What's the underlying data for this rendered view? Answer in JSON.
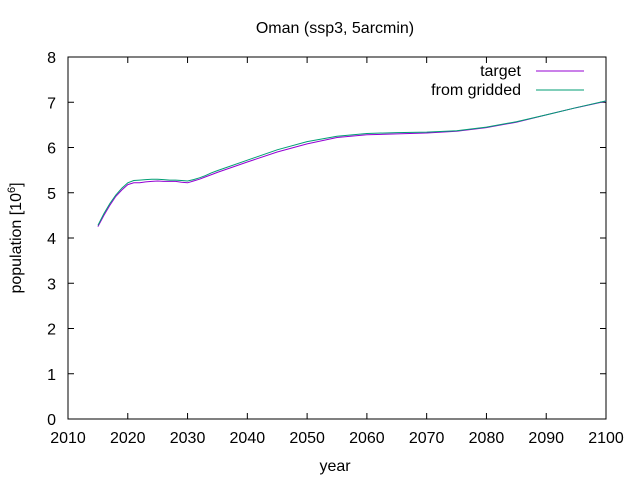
{
  "chart_data": {
    "type": "line",
    "title": "Oman (ssp3, 5arcmin)",
    "xlabel": "year",
    "ylabel_base": "population [10",
    "ylabel_exp": "6",
    "ylabel_close": "]",
    "xlim": [
      2010,
      2100
    ],
    "ylim": [
      0,
      8
    ],
    "xticks": [
      2010,
      2020,
      2030,
      2040,
      2050,
      2060,
      2070,
      2080,
      2090,
      2100
    ],
    "yticks": [
      0,
      1,
      2,
      3,
      4,
      5,
      6,
      7,
      8
    ],
    "grid": false,
    "legend_position": "top-right",
    "series": [
      {
        "name": "target",
        "color": "#9400d3",
        "x": [
          2015,
          2016,
          2017,
          2018,
          2019,
          2020,
          2021,
          2022,
          2023,
          2024,
          2025,
          2026,
          2027,
          2028,
          2029,
          2030,
          2031,
          2032,
          2033,
          2034,
          2035,
          2040,
          2045,
          2050,
          2055,
          2060,
          2065,
          2070,
          2075,
          2080,
          2085,
          2090,
          2095,
          2100
        ],
        "y": [
          4.25,
          4.5,
          4.72,
          4.92,
          5.06,
          5.18,
          5.22,
          5.22,
          5.24,
          5.25,
          5.26,
          5.25,
          5.25,
          5.25,
          5.23,
          5.22,
          5.26,
          5.3,
          5.35,
          5.4,
          5.45,
          5.68,
          5.9,
          6.08,
          6.22,
          6.28,
          6.3,
          6.32,
          6.36,
          6.44,
          6.56,
          6.72,
          6.88,
          7.02
        ]
      },
      {
        "name": "from gridded",
        "color": "#009e73",
        "x": [
          2015,
          2016,
          2017,
          2018,
          2019,
          2020,
          2021,
          2022,
          2023,
          2024,
          2025,
          2026,
          2027,
          2028,
          2029,
          2030,
          2031,
          2032,
          2033,
          2034,
          2035,
          2040,
          2045,
          2050,
          2055,
          2060,
          2065,
          2070,
          2075,
          2080,
          2085,
          2090,
          2095,
          2100
        ],
        "y": [
          4.28,
          4.54,
          4.76,
          4.95,
          5.1,
          5.22,
          5.27,
          5.28,
          5.29,
          5.3,
          5.3,
          5.29,
          5.28,
          5.28,
          5.27,
          5.26,
          5.29,
          5.33,
          5.38,
          5.44,
          5.49,
          5.72,
          5.95,
          6.13,
          6.25,
          6.31,
          6.33,
          6.34,
          6.37,
          6.45,
          6.57,
          6.72,
          6.88,
          7.03
        ]
      }
    ]
  }
}
